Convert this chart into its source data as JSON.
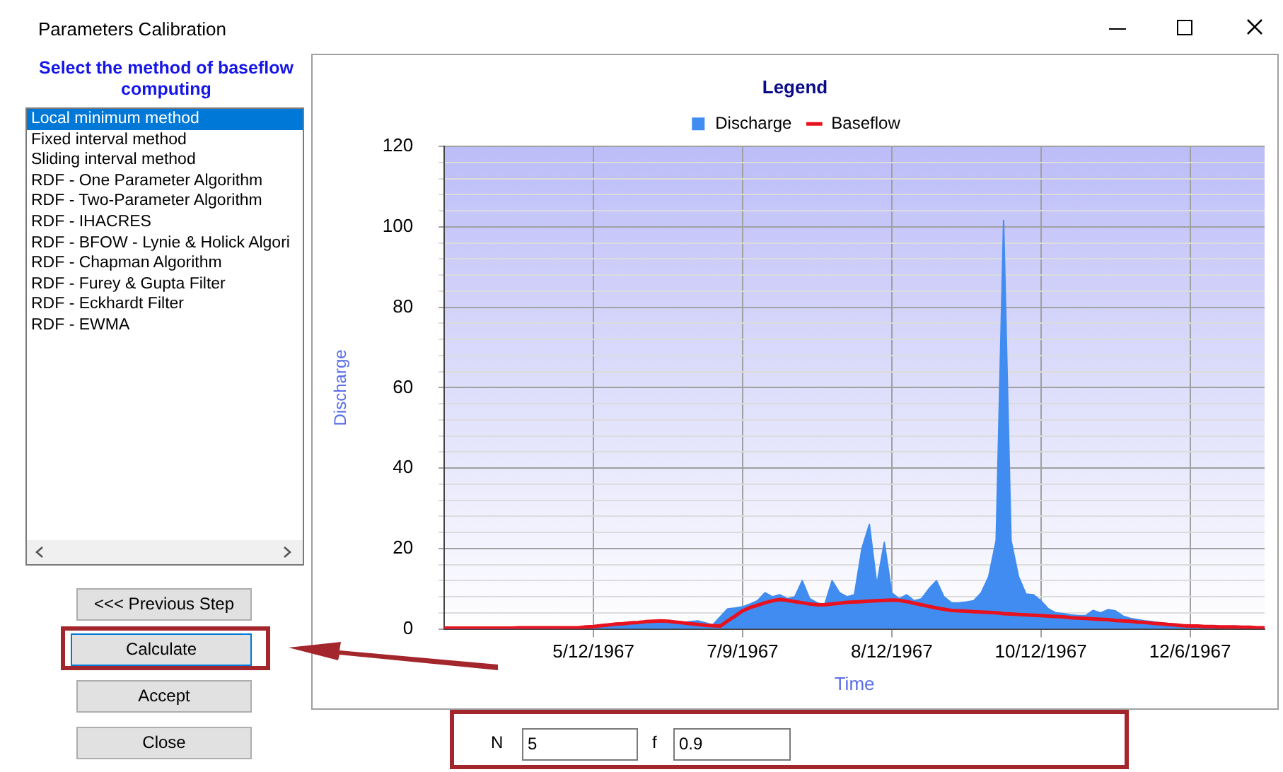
{
  "chart_data": {
    "type": "area",
    "xlabel": "Time",
    "ylabel": "Discharge",
    "legend_title": "Legend",
    "legend": "top",
    "grid": true,
    "marker": "none",
    "categories": [
      null,
      null,
      null,
      null,
      null,
      null,
      null,
      null,
      null,
      null,
      null,
      null,
      null,
      null,
      null,
      null,
      null,
      null,
      null,
      null,
      "5/12/1967",
      null,
      null,
      null,
      null,
      null,
      null,
      null,
      null,
      null,
      null,
      null,
      null,
      null,
      null,
      null,
      null,
      null,
      null,
      null,
      "7/9/1967",
      null,
      null,
      null,
      null,
      null,
      null,
      null,
      null,
      null,
      null,
      null,
      null,
      null,
      null,
      null,
      null,
      null,
      null,
      null,
      "8/12/1967",
      null,
      null,
      null,
      null,
      null,
      null,
      null,
      null,
      null,
      null,
      null,
      null,
      null,
      null,
      null,
      null,
      null,
      null,
      null,
      "10/12/1967",
      null,
      null,
      null,
      null,
      null,
      null,
      null,
      null,
      null,
      null,
      null,
      null,
      null,
      null,
      null,
      null,
      null,
      null,
      null,
      "12/6/1967",
      null,
      null,
      null,
      null,
      null,
      null,
      null,
      null,
      null,
      null
    ],
    "ylim": [
      0,
      120
    ],
    "yticks": [
      0,
      {
        "value": 4,
        "label": null
      },
      {
        "value": 8,
        "label": null
      },
      {
        "value": 12,
        "label": null
      },
      {
        "value": 16,
        "label": null
      },
      20,
      {
        "value": 24,
        "label": null
      },
      {
        "value": 28,
        "label": null
      },
      {
        "value": 32,
        "label": null
      },
      {
        "value": 36,
        "label": null
      },
      40,
      {
        "value": 44,
        "label": null
      },
      {
        "value": 48,
        "label": null
      },
      {
        "value": 52,
        "label": null
      },
      {
        "value": 56,
        "label": null
      },
      60,
      {
        "value": 64,
        "label": null
      },
      {
        "value": 68,
        "label": null
      },
      {
        "value": 72,
        "label": null
      },
      {
        "value": 76,
        "label": null
      },
      80,
      {
        "value": 84,
        "label": null
      },
      {
        "value": 88,
        "label": null
      },
      {
        "value": 92,
        "label": null
      },
      {
        "value": 96,
        "label": null
      },
      100,
      {
        "value": 104,
        "label": null
      },
      {
        "value": 108,
        "label": null
      },
      {
        "value": 112,
        "label": null
      },
      {
        "value": 116,
        "label": null
      },
      120
    ],
    "series": [
      {
        "name": "Discharge",
        "type": "area",
        "color": "#418cf0",
        "values": [
          0,
          0,
          0,
          0,
          0,
          0,
          0,
          0,
          0,
          0,
          0,
          0,
          0,
          0,
          0,
          0,
          0.3,
          0.4,
          0.5,
          0.5,
          0.6,
          0.6,
          0.7,
          0.8,
          1,
          1.1,
          1.2,
          1.3,
          1.4,
          1.4,
          1.5,
          1.5,
          1.6,
          1.8,
          2,
          1.5,
          1,
          3,
          5,
          5.2,
          5.5,
          6.2,
          7,
          9,
          8,
          8.5,
          7.5,
          8,
          12,
          7.5,
          6.5,
          6,
          12,
          9,
          8,
          8.5,
          20,
          26,
          11,
          21.5,
          9,
          7.5,
          8.5,
          7,
          7.5,
          10,
          12,
          8,
          6.5,
          6.5,
          6.7,
          7,
          9,
          13,
          22,
          101.6,
          22,
          13,
          8.7,
          8.5,
          7,
          5,
          4,
          3.8,
          3.5,
          3.3,
          3.3,
          4.6,
          4,
          4.8,
          4.5,
          3.2,
          2.6,
          2.3,
          2,
          1.8,
          1.5,
          1.3,
          1.1,
          0.9,
          0.7,
          0.6,
          0.6,
          0.5,
          0.5,
          0.4,
          0.4,
          0.4,
          0.3,
          0.3,
          0.3
        ]
      },
      {
        "name": "Baseflow",
        "type": "line",
        "color": "#e8121e",
        "values": [
          0.2,
          0.2,
          0.2,
          0.2,
          0.2,
          0.2,
          0.2,
          0.2,
          0.2,
          0.2,
          0.3,
          0.3,
          0.3,
          0.3,
          0.3,
          0.3,
          0.3,
          0.3,
          0.3,
          0.5,
          0.6,
          0.8,
          1,
          1.2,
          1.3,
          1.5,
          1.6,
          1.8,
          1.9,
          2,
          1.9,
          1.7,
          1.5,
          1.3,
          1.1,
          0.9,
          0.8,
          0.7,
          2,
          3.2,
          4.5,
          5.3,
          5.9,
          6.5,
          7,
          7.3,
          7.1,
          6.8,
          6.5,
          6.2,
          6,
          6,
          6.2,
          6.4,
          6.6,
          6.7,
          6.8,
          6.9,
          7,
          7.1,
          7.2,
          7.1,
          6.8,
          6.4,
          6,
          5.6,
          5.2,
          4.9,
          4.6,
          4.5,
          4.4,
          4.3,
          4.2,
          4.1,
          4,
          3.8,
          3.7,
          3.6,
          3.5,
          3.4,
          3.3,
          3.2,
          3.1,
          3,
          2.8,
          2.7,
          2.6,
          2.5,
          2.4,
          2.3,
          2.1,
          2,
          1.9,
          1.7,
          1.6,
          1.4,
          1.3,
          1.1,
          1,
          0.8,
          0.7,
          0.7,
          0.6,
          0.6,
          0.5,
          0.5,
          0.5,
          0.4,
          0.4,
          0.3,
          0.3
        ]
      }
    ],
    "annotations": [
      "Parameters Calibration",
      "Select the method of baseflow computing",
      "Local minimum method",
      "Fixed interval method",
      "Sliding interval method",
      "RDF - One Parameter Algorithm",
      "RDF - Two-Parameter Algorithm",
      "RDF - IHACRES",
      "RDF - BFOW - Lynie & Holick Algori",
      "RDF - Chapman Algorithm",
      "RDF - Furey & Gupta Filter",
      "RDF - Eckhardt Filter",
      "RDF - EWMA",
      "<<< Previous Step",
      "Calculate",
      "Accept",
      "Close",
      "N",
      "5",
      "f",
      "0.9"
    ]
  }
}
